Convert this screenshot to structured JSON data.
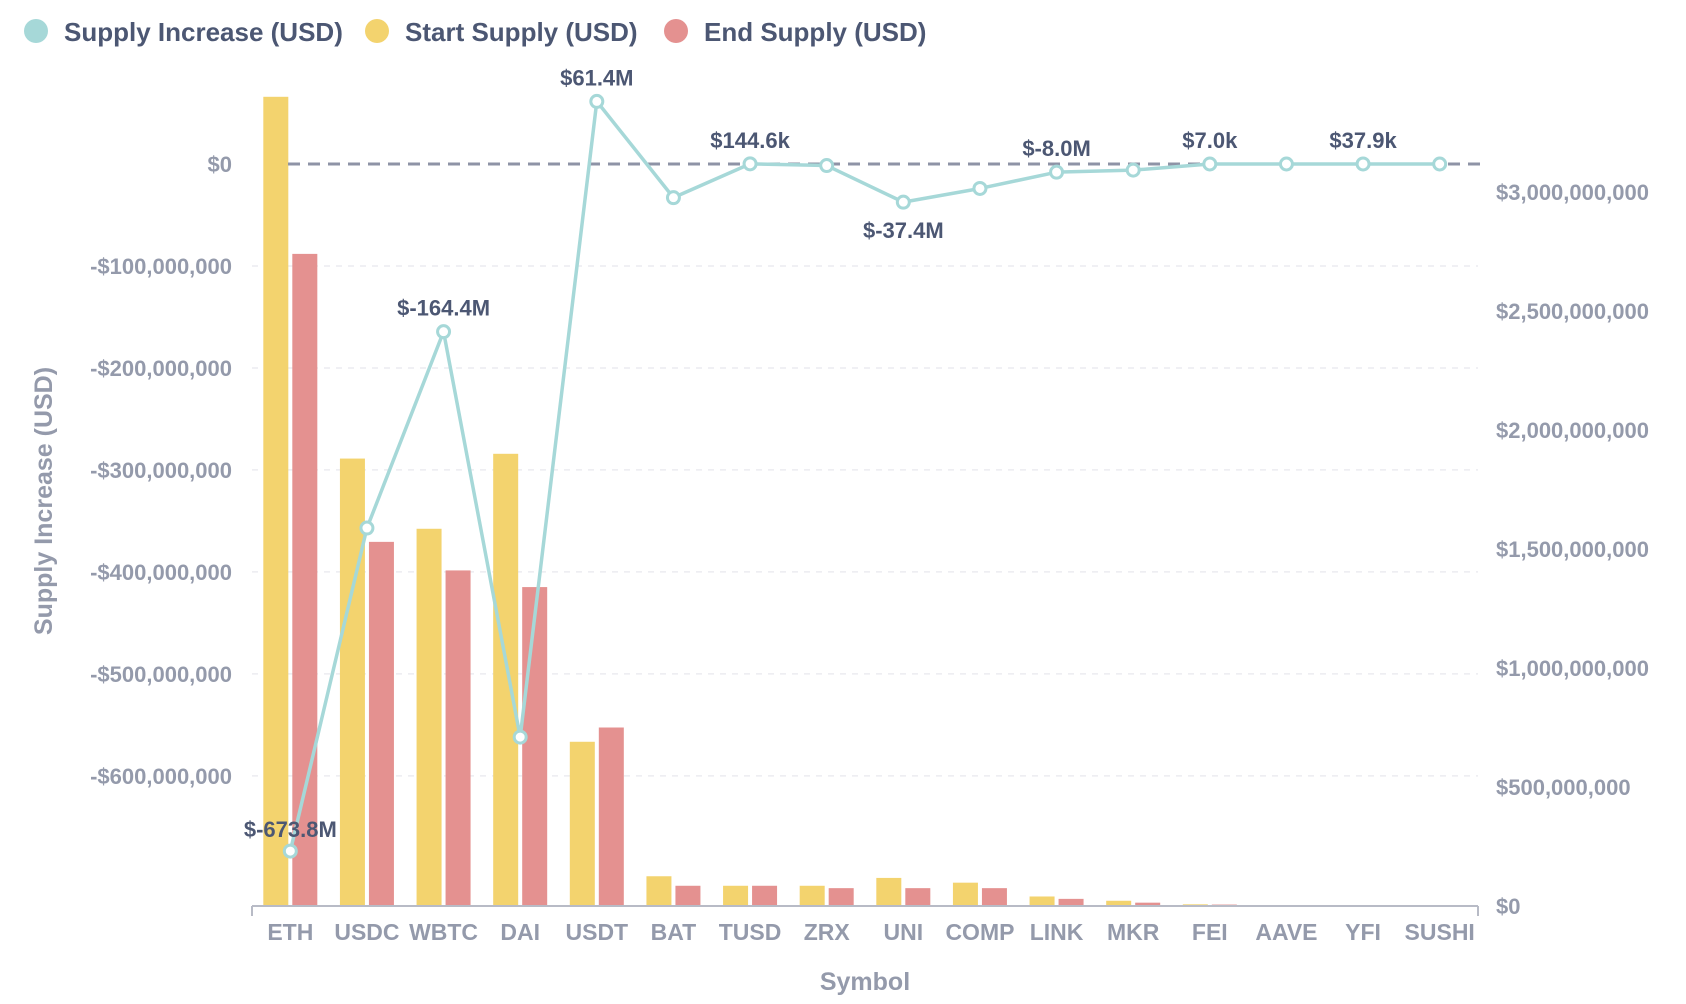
{
  "chart_data": {
    "type": "bar+line",
    "legend": {
      "position": "top-left",
      "items": [
        {
          "name": "Supply Increase (USD)",
          "color": "#a6d8d8"
        },
        {
          "name": "Start Supply (USD)",
          "color": "#f3d36e"
        },
        {
          "name": "End Supply (USD)",
          "color": "#e49190"
        }
      ]
    },
    "xlabel": "Symbol",
    "ylabel_left": "Supply Increase (USD)",
    "ylabel_right": "",
    "ylim_left": [
      -673800000,
      61400000
    ],
    "ylim_right": [
      0,
      3400000000
    ],
    "left_ticks": [
      {
        "value": 0,
        "label": "$0"
      },
      {
        "value": -100000000,
        "label": "-$100,000,000"
      },
      {
        "value": -200000000,
        "label": "-$200,000,000"
      },
      {
        "value": -300000000,
        "label": "-$300,000,000"
      },
      {
        "value": -400000000,
        "label": "-$400,000,000"
      },
      {
        "value": -500000000,
        "label": "-$500,000,000"
      },
      {
        "value": -600000000,
        "label": "-$600,000,000"
      }
    ],
    "right_ticks": [
      {
        "value": 0,
        "label": "$0"
      },
      {
        "value": 500000000,
        "label": "$500,000,000"
      },
      {
        "value": 1000000000,
        "label": "$1,000,000,000"
      },
      {
        "value": 1500000000,
        "label": "$1,500,000,000"
      },
      {
        "value": 2000000000,
        "label": "$2,000,000,000"
      },
      {
        "value": 2500000000,
        "label": "$2,500,000,000"
      },
      {
        "value": 3000000000,
        "label": "$3,000,000,000"
      }
    ],
    "grid": true,
    "categories": [
      "ETH",
      "USDC",
      "WBTC",
      "DAI",
      "USDT",
      "BAT",
      "TUSD",
      "ZRX",
      "UNI",
      "COMP",
      "LINK",
      "MKR",
      "FEI",
      "AAVE",
      "YFI",
      "SUSHI"
    ],
    "series": [
      {
        "name": "Supply Increase (USD)",
        "type": "line",
        "axis": "left",
        "color": "#a6d8d8",
        "values": [
          -673800000,
          -357000000,
          -164400000,
          -562000000,
          61400000,
          -33000000,
          144600,
          -1500000,
          -37400000,
          -24000000,
          -8000000,
          -6000000,
          7000,
          0,
          37900,
          0
        ],
        "labels": [
          "$-673.8M",
          "",
          "$-164.4M",
          "",
          "$61.4M",
          "",
          "$144.6k",
          "",
          "$-37.4M",
          "",
          "$-8.0M",
          "",
          "$7.0k",
          "",
          "$37.9k",
          ""
        ]
      },
      {
        "name": "Start Supply (USD)",
        "type": "bar",
        "axis": "right",
        "color": "#f3d36e",
        "values": [
          3400000000,
          1880000000,
          1585000000,
          1900000000,
          690000000,
          125000000,
          85000000,
          85000000,
          118000000,
          98000000,
          40000000,
          22000000,
          7000000,
          0,
          0,
          0
        ]
      },
      {
        "name": "End Supply (USD)",
        "type": "bar",
        "axis": "right",
        "color": "#e49190",
        "values": [
          2740000000,
          1530000000,
          1410000000,
          1340000000,
          750000000,
          85000000,
          85000000,
          75000000,
          75000000,
          75000000,
          30000000,
          14000000,
          6000000,
          0,
          0,
          0
        ]
      }
    ]
  }
}
